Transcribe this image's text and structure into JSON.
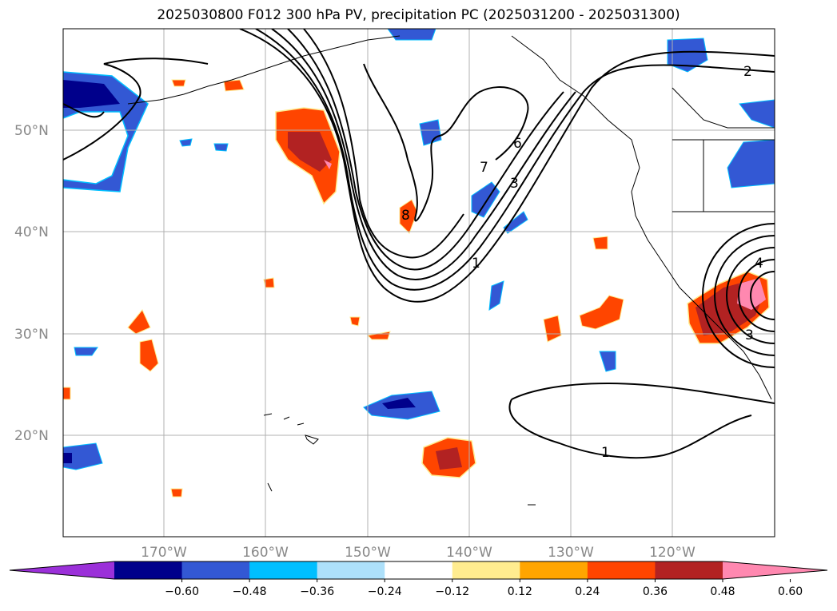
{
  "title": "2025030800 F012 300 hPa PV, precipitation PC (2025031200 - 2025031300)",
  "lat_labels": [
    "50°N",
    "40°N",
    "30°N",
    "20°N"
  ],
  "lon_labels": [
    "170°W",
    "160°W",
    "150°W",
    "140°W",
    "130°W",
    "120°W"
  ],
  "colorbar": {
    "colors": [
      "#9b30d9",
      "#00008b",
      "#3358d4",
      "#00bfff",
      "#ade0fa",
      "#ffffff",
      "#ffec8f",
      "#ffa500",
      "#ff4500",
      "#b22222",
      "#ff88b0"
    ],
    "ticks": [
      "−0.60",
      "−0.48",
      "−0.36",
      "−0.24",
      "−0.12",
      "0.12",
      "0.24",
      "0.36",
      "0.48",
      "0.60"
    ]
  },
  "contour_labels": [
    "2",
    "6",
    "7",
    "3",
    "8",
    "1",
    "4",
    "1",
    "3"
  ]
}
